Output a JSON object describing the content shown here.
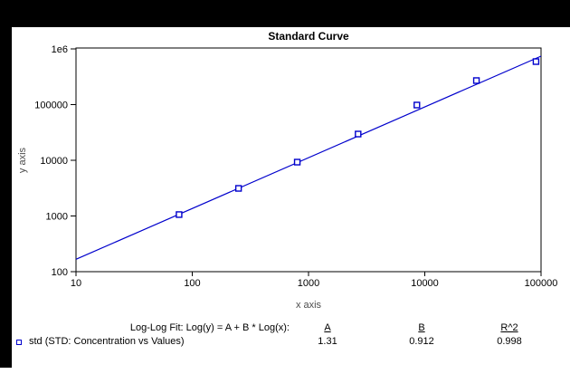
{
  "window": {
    "background_color": "#000000",
    "panel_color": "#ffffff"
  },
  "chart_data": {
    "type": "scatter",
    "title": "Standard Curve",
    "xlabel": "x axis",
    "ylabel": "y axis",
    "x_scale": "log",
    "y_scale": "log",
    "xlim": [
      10,
      100000
    ],
    "ylim": [
      100,
      1000000
    ],
    "grid": false,
    "accent_color": "#0000cc",
    "axis_label_color": "#4d4d4d",
    "x_ticks": [
      {
        "v": 10,
        "label": "10"
      },
      {
        "v": 100,
        "label": "100"
      },
      {
        "v": 1000,
        "label": "1000"
      },
      {
        "v": 10000,
        "label": "10000"
      },
      {
        "v": 100000,
        "label": "100000"
      }
    ],
    "y_ticks": [
      {
        "v": 100,
        "label": "100"
      },
      {
        "v": 1000,
        "label": "1000"
      },
      {
        "v": 10000,
        "label": "10000"
      },
      {
        "v": 100000,
        "label": "100000"
      },
      {
        "v": 1000000,
        "label": "1e6"
      }
    ],
    "series": [
      {
        "name": "std",
        "marker": "open-square",
        "color": "#0000cc",
        "x": [
          77,
          250,
          800,
          2670,
          8550,
          27800,
          90500
        ],
        "y": [
          1060,
          3130,
          9270,
          29600,
          98200,
          270000,
          592000
        ]
      }
    ],
    "fit": {
      "type": "log-log",
      "A": 1.31,
      "B": 0.912,
      "R2": 0.998,
      "color": "#0000cc"
    }
  },
  "legend": {
    "fit_label": "Log-Log Fit: Log(y) = A + B * Log(x):",
    "col_a_header": "A",
    "col_b_header": "B",
    "col_r2_header": "R^2",
    "series_label": "std (STD: Concentration vs Values)",
    "a_value": "1.31",
    "b_value": "0.912",
    "r2_value": "0.998"
  }
}
